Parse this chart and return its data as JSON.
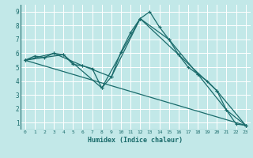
{
  "xlabel": "Humidex (Indice chaleur)",
  "bg_color": "#c2e8e8",
  "grid_color": "#ffffff",
  "line_color": "#1a6b6b",
  "xlim": [
    -0.5,
    23.5
  ],
  "ylim": [
    0.5,
    9.5
  ],
  "yticks": [
    1,
    2,
    3,
    4,
    5,
    6,
    7,
    8,
    9
  ],
  "xticks": [
    0,
    1,
    2,
    3,
    4,
    5,
    6,
    7,
    8,
    9,
    10,
    11,
    12,
    13,
    14,
    15,
    16,
    17,
    18,
    19,
    20,
    21,
    22,
    23
  ],
  "series": [
    {
      "x": [
        0,
        1,
        2,
        3,
        4,
        5,
        6,
        7,
        8,
        9,
        10,
        11,
        12,
        13,
        14,
        15,
        16,
        17,
        18,
        19,
        20,
        21,
        22,
        23
      ],
      "y": [
        5.5,
        5.8,
        5.7,
        6.0,
        5.9,
        5.2,
        5.1,
        4.9,
        3.5,
        4.3,
        6.1,
        7.5,
        8.5,
        9.0,
        7.9,
        7.0,
        5.9,
        5.0,
        4.5,
        4.0,
        3.3,
        1.9,
        0.9,
        0.8
      ]
    },
    {
      "x": [
        0,
        3,
        6,
        9,
        12,
        15,
        18,
        21,
        23
      ],
      "y": [
        5.5,
        6.0,
        5.1,
        4.3,
        8.5,
        7.0,
        4.5,
        1.9,
        0.8
      ]
    },
    {
      "x": [
        0,
        23
      ],
      "y": [
        5.5,
        0.8
      ]
    },
    {
      "x": [
        0,
        4,
        8,
        12,
        16,
        20,
        23
      ],
      "y": [
        5.5,
        5.9,
        3.5,
        8.5,
        5.9,
        3.3,
        0.8
      ]
    }
  ]
}
